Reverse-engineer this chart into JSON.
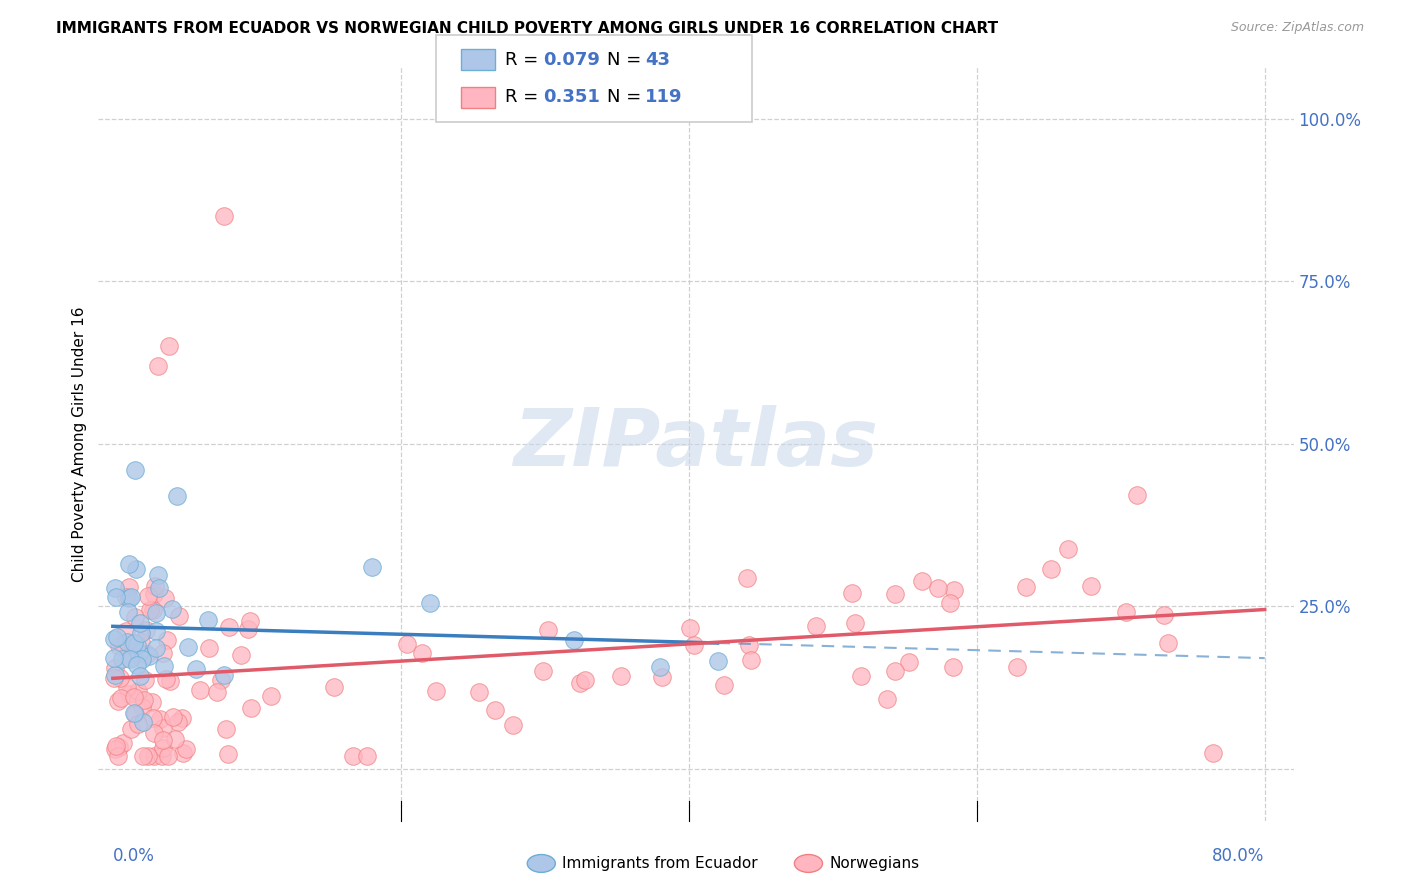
{
  "title": "IMMIGRANTS FROM ECUADOR VS NORWEGIAN CHILD POVERTY AMONG GIRLS UNDER 16 CORRELATION CHART",
  "source": "Source: ZipAtlas.com",
  "ylabel": "Child Poverty Among Girls Under 16",
  "xlim": [
    -1.0,
    82.0
  ],
  "ylim": [
    -8.0,
    108.0
  ],
  "ytick_positions": [
    0,
    25,
    50,
    75,
    100
  ],
  "ytick_labels": [
    "",
    "25.0%",
    "50.0%",
    "75.0%",
    "100.0%"
  ],
  "xtick_left_label": "0.0%",
  "xtick_right_label": "80.0%",
  "legend_r1": "0.079",
  "legend_n1": "43",
  "legend_r2": "0.351",
  "legend_n2": "119",
  "legend_color": "#4472c4",
  "series1_label": "Immigrants from Ecuador",
  "series2_label": "Norwegians",
  "series1_fill": "#aec7e8",
  "series1_edge": "#6baed6",
  "series2_fill": "#ffb6c1",
  "series2_edge": "#f08080",
  "trendline1_color": "#3a7ebf",
  "trendline2_color": "#e05a6a",
  "watermark_text": "ZIPatlas",
  "watermark_color": "#c8d8ea",
  "background": "#ffffff",
  "grid_color": "#c8c8c8",
  "title_fontsize": 11,
  "source_fontsize": 9,
  "label_fontsize": 11,
  "tick_fontsize": 12,
  "legend_fontsize": 13
}
